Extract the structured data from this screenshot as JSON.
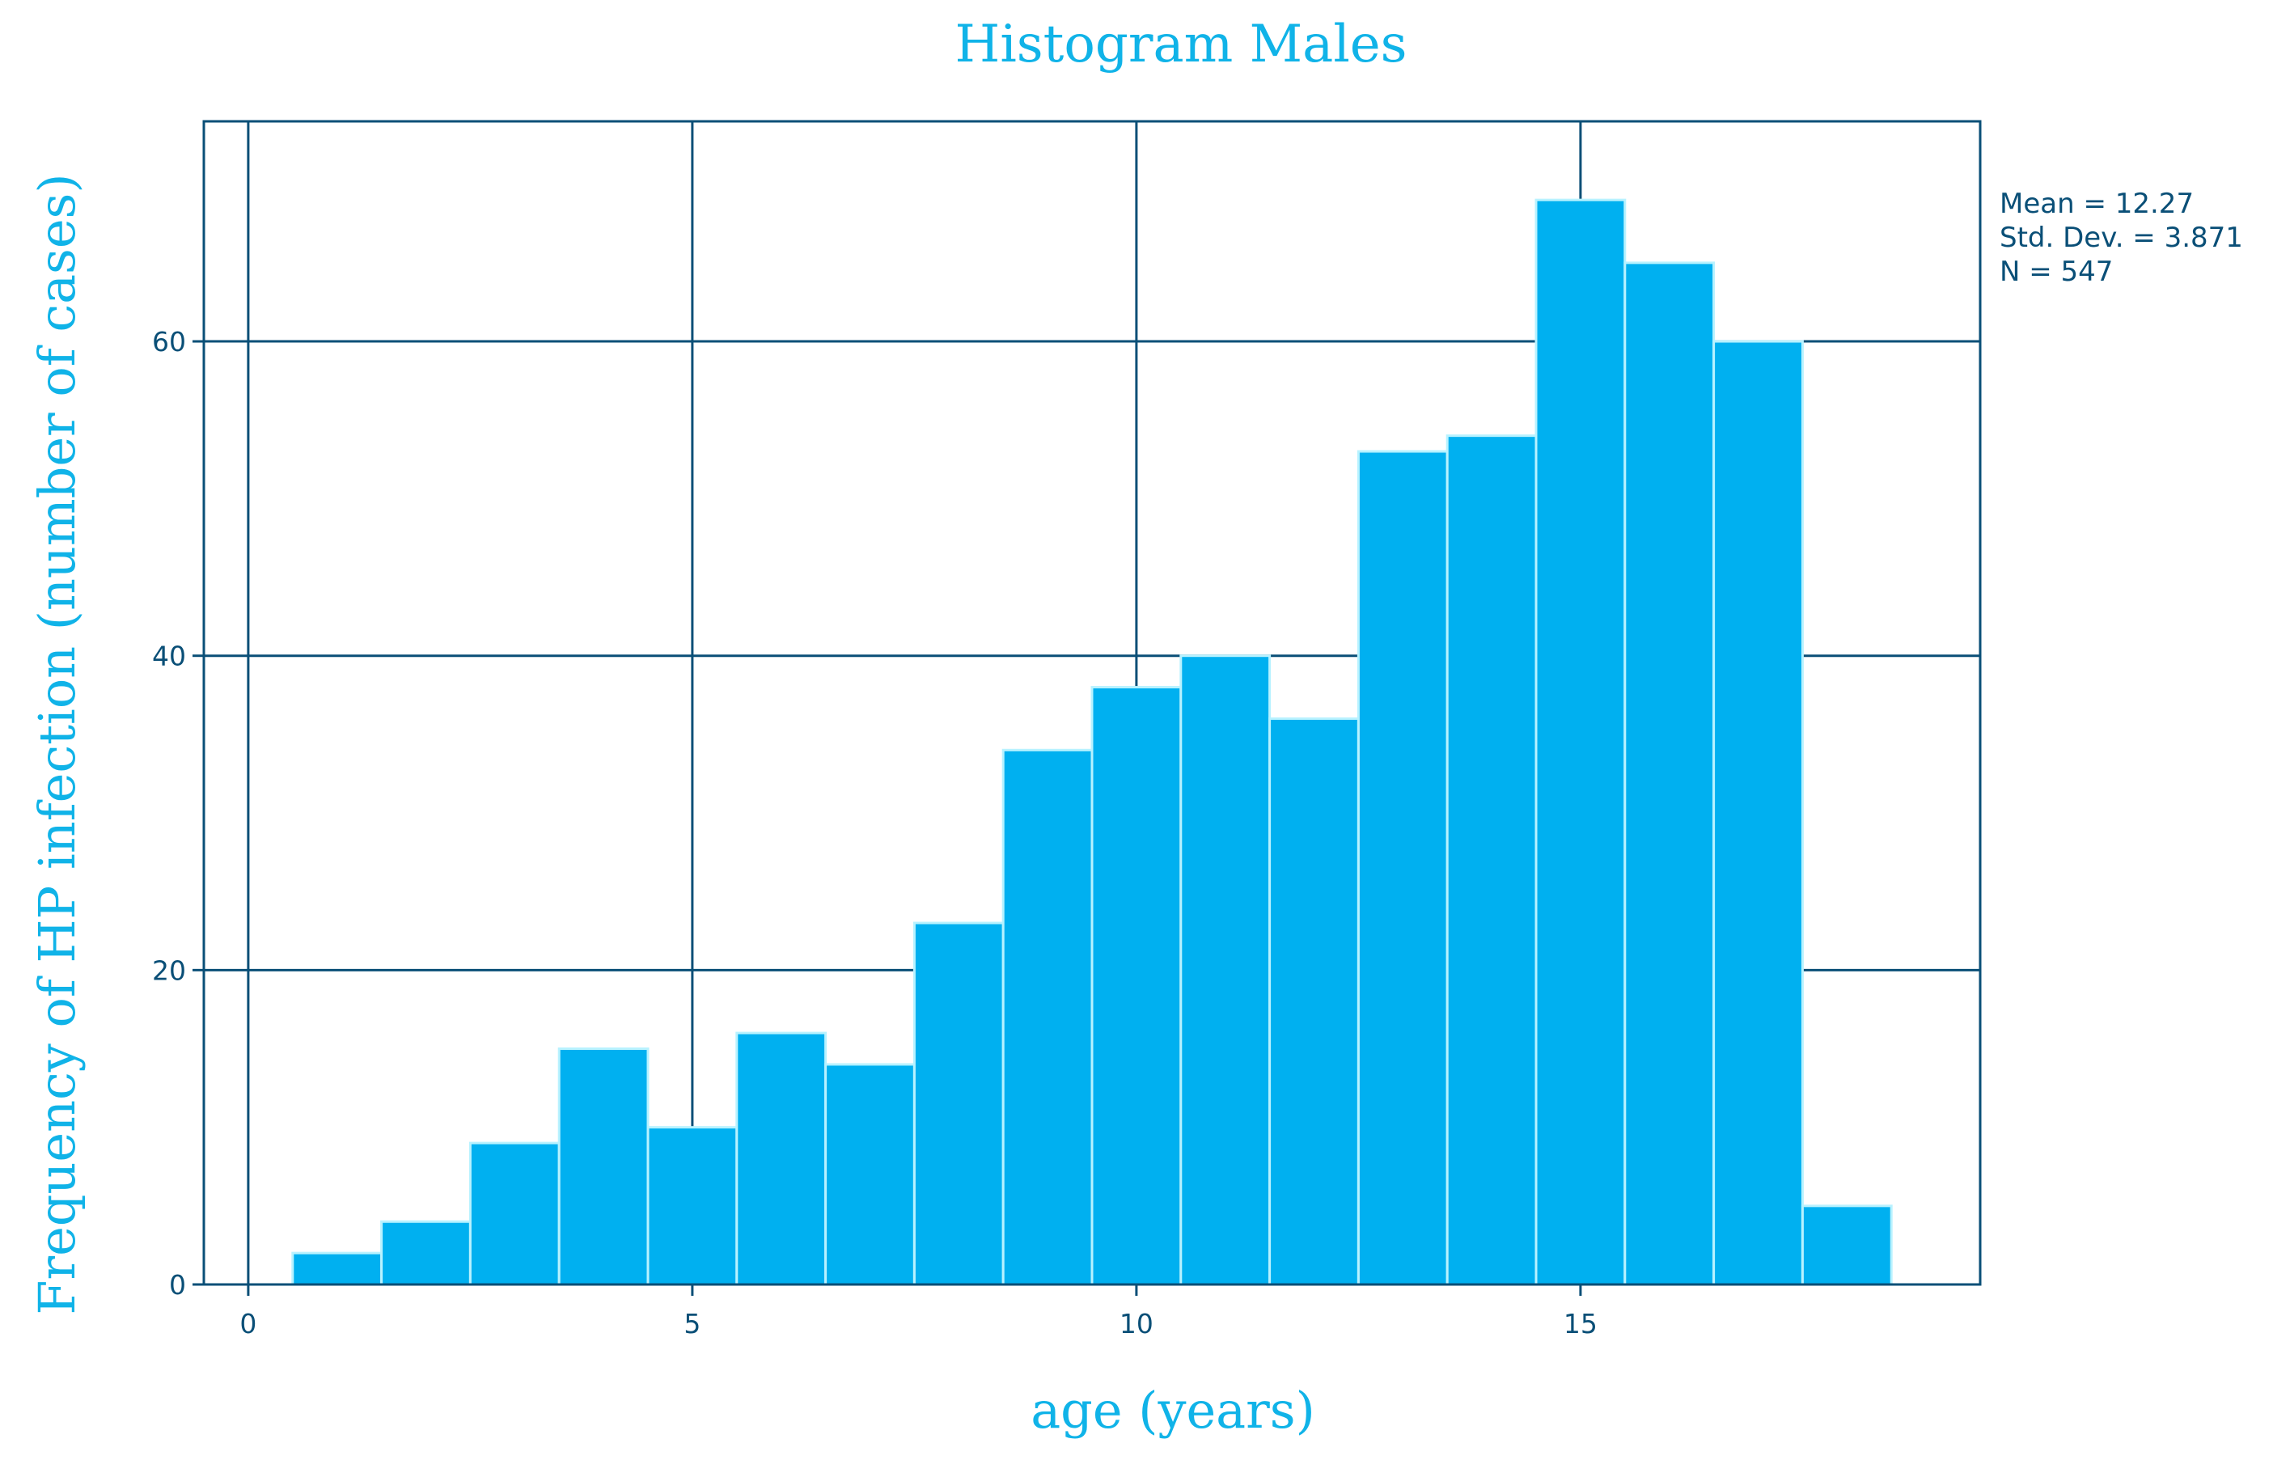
{
  "chart_data": {
    "type": "bar",
    "title": "Histogram Males",
    "xlabel": "age (years)",
    "ylabel": "Frequency of HP infection (number of cases)",
    "xlim": [
      -0.5,
      19.5
    ],
    "ylim": [
      0,
      74
    ],
    "x_ticks": [
      0,
      5,
      10,
      15
    ],
    "y_ticks": [
      0,
      20,
      40,
      60
    ],
    "grid": true,
    "bin_width": 1,
    "bins": [
      {
        "x": 1,
        "value": 2
      },
      {
        "x": 2,
        "value": 4
      },
      {
        "x": 3,
        "value": 9
      },
      {
        "x": 4,
        "value": 15
      },
      {
        "x": 5,
        "value": 10
      },
      {
        "x": 6,
        "value": 16
      },
      {
        "x": 7,
        "value": 14
      },
      {
        "x": 8,
        "value": 23
      },
      {
        "x": 9,
        "value": 34
      },
      {
        "x": 10,
        "value": 38
      },
      {
        "x": 11,
        "value": 40
      },
      {
        "x": 12,
        "value": 36
      },
      {
        "x": 13,
        "value": 53
      },
      {
        "x": 14,
        "value": 54
      },
      {
        "x": 15,
        "value": 69
      },
      {
        "x": 16,
        "value": 65
      },
      {
        "x": 17,
        "value": 60
      },
      {
        "x": 18,
        "value": 5
      }
    ],
    "stats": {
      "mean": "Mean = 12.27",
      "std_dev": "Std. Dev. = 3.871",
      "n": "N = 547"
    },
    "colors": {
      "bar": "#00b0f0",
      "bar_edge": "#b8f2ff",
      "axis": "#0a4f77",
      "title": "#10b3e8"
    }
  }
}
